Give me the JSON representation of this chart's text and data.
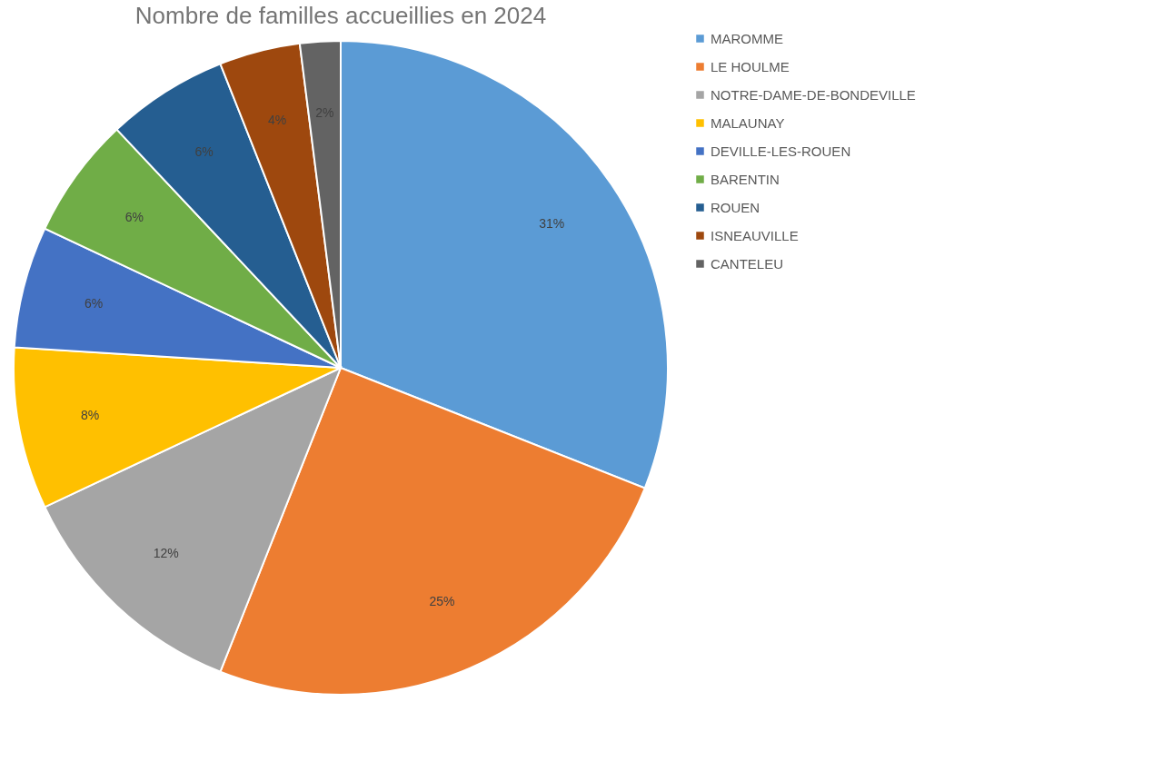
{
  "chart_data": {
    "type": "pie",
    "title": "Nombre de familles accueillies en 2024",
    "categories": [
      "MAROMME",
      "LE HOULME",
      "NOTRE-DAME-DE-BONDEVILLE",
      "MALAUNAY",
      "DEVILLE-LES-ROUEN",
      "BARENTIN",
      "ROUEN",
      "ISNEAUVILLE",
      "CANTELEU"
    ],
    "values": [
      31,
      25,
      12,
      8,
      6,
      6,
      6,
      4,
      2
    ],
    "value_labels": [
      "31%",
      "25%",
      "12%",
      "8%",
      "6%",
      "6%",
      "6%",
      "4%",
      "2%"
    ],
    "colors": [
      "#5b9bd5",
      "#ed7d31",
      "#a5a5a5",
      "#ffc000",
      "#4472c4",
      "#70ad47",
      "#255e91",
      "#9e480e",
      "#636363"
    ],
    "legend": "right"
  }
}
